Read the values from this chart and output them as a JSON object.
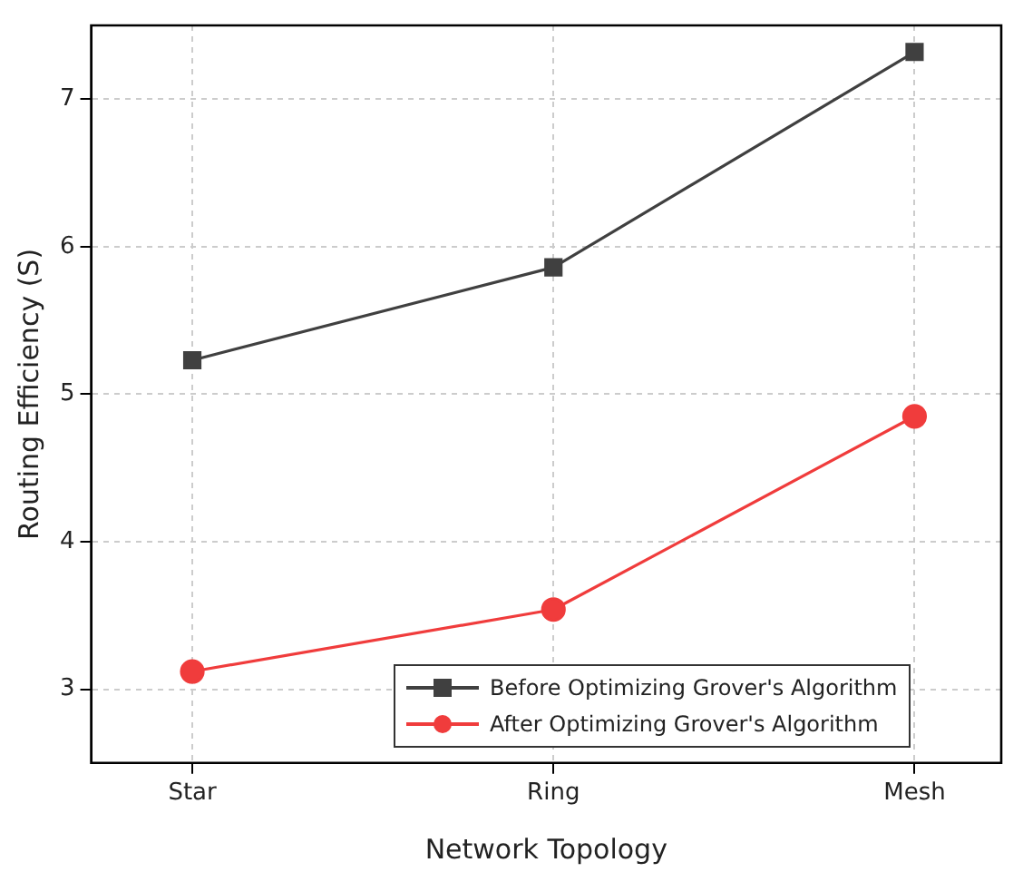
{
  "chart_data": {
    "type": "line",
    "xlabel": "Network Topology",
    "ylabel": "Routing Efficiency (S)",
    "categories": [
      "Star",
      "Ring",
      "Mesh"
    ],
    "series": [
      {
        "name": "Before Optimizing Grover's Algorithm",
        "color": "#404040",
        "marker": "square",
        "values": [
          5.23,
          5.86,
          7.32
        ]
      },
      {
        "name": "After Optimizing Grover's Algorithm",
        "color": "#f03c3c",
        "marker": "circle",
        "values": [
          3.12,
          3.54,
          4.85
        ]
      }
    ],
    "ylim": [
      2.5,
      7.5
    ],
    "yticks": [
      3,
      4,
      5,
      6,
      7
    ],
    "grid": true,
    "legend": "bottom right",
    "line_style": "solid"
  }
}
